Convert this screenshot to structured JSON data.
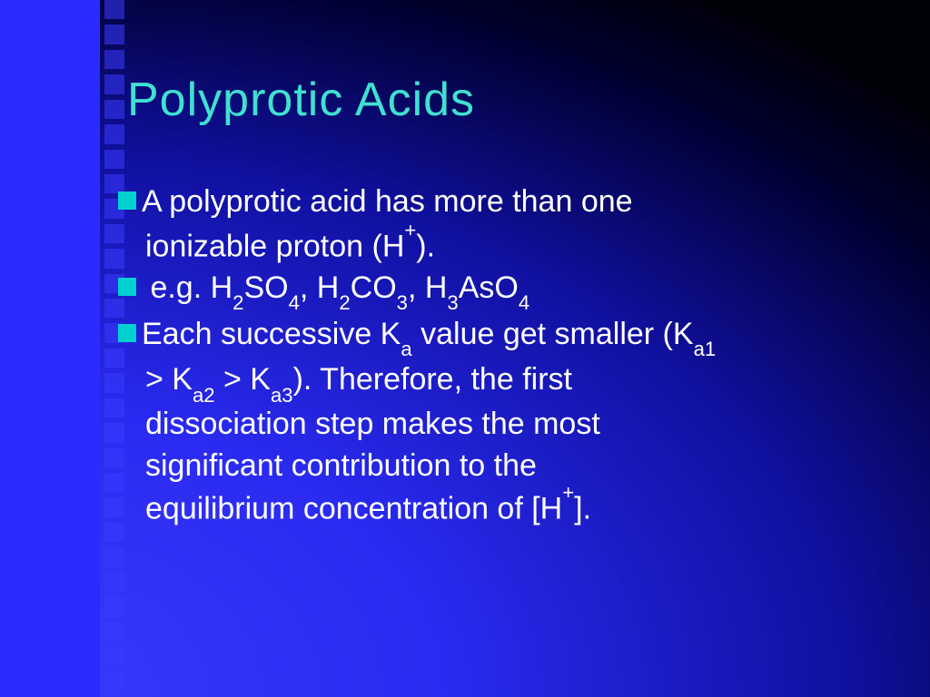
{
  "slide": {
    "title": "Polyprotic Acids",
    "title_color": "#40e0d0",
    "bullet_color": "#00d0d0",
    "text_color": "#ffffff",
    "background_gradient_start": "#3b3bff",
    "background_gradient_end": "#000008",
    "left_stripe_color": "#2b2bff",
    "dot_color": "#3a3aff",
    "bullets": [
      {
        "line1_prefix": "A polyprotic acid has more than one",
        "line2": "ionizable proton (H",
        "line2_sup": "+",
        "line2_suffix": ")."
      },
      {
        "examples_label": " e.g. ",
        "f1a": "H",
        "f1s1": "2",
        "f1b": "SO",
        "f1s2": "4",
        "sep1": ", ",
        "f2a": "H",
        "f2s1": "2",
        "f2b": "CO",
        "f2s2": "3",
        "sep2": ", ",
        "f3a": "H",
        "f3s1": "3",
        "f3b": "AsO",
        "f3s2": "4"
      },
      {
        "p1": "Each successive K",
        "p1sub": "a",
        "p2": " value get smaller (K",
        "p2sub": "a1",
        "c1a": "> K",
        "c1asub": "a2",
        "c1b": " > K",
        "c1bsub": "a3",
        "c1c": ").  Therefore, the first",
        "c2": "dissociation step makes the most",
        "c3": "significant contribution to the",
        "c4a": "equilibrium concentration of [H",
        "c4sup": "+",
        "c4b": "]."
      }
    ]
  }
}
